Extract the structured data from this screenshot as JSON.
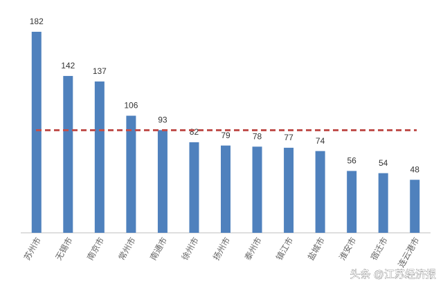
{
  "chart_data": {
    "type": "bar",
    "categories": [
      "苏州市",
      "无锡市",
      "南京市",
      "常州市",
      "南通市",
      "徐州市",
      "扬州市",
      "泰州市",
      "镇江市",
      "盐城市",
      "淮安市",
      "宿迁市",
      "连云港市"
    ],
    "values": [
      182,
      142,
      137,
      106,
      93,
      82,
      79,
      78,
      77,
      74,
      56,
      54,
      48
    ],
    "color": "#4f81bd",
    "reference_line": {
      "value": 92.9,
      "color": "#c0504d"
    },
    "ylim": [
      0,
      192
    ]
  },
  "watermark": "头条 @江苏经济报"
}
